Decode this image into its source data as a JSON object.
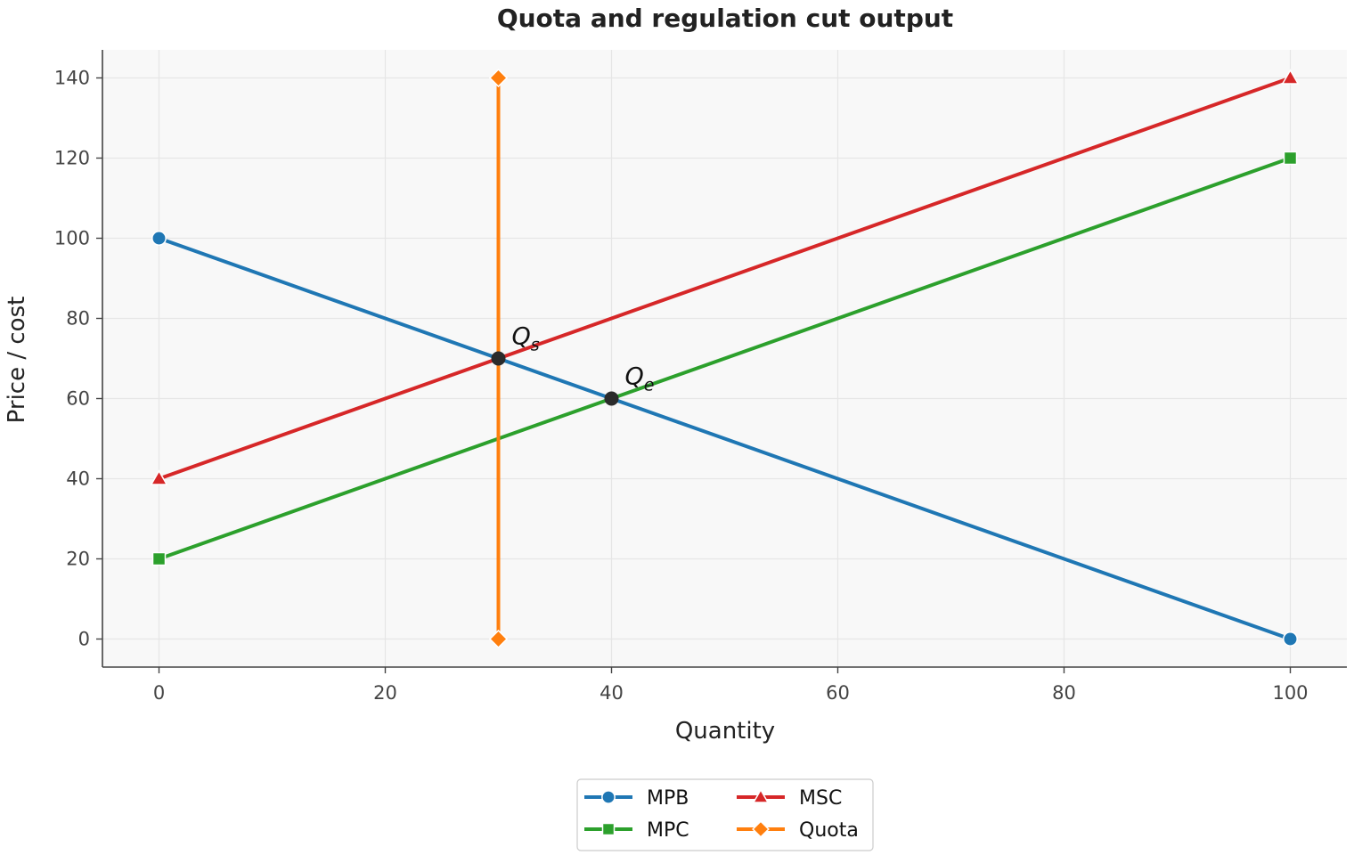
{
  "chart_data": {
    "type": "line",
    "title": "Quota and regulation cut output",
    "xlabel": "Quantity",
    "ylabel": "Price / cost",
    "xlim": [
      -5,
      105
    ],
    "ylim": [
      -7,
      147
    ],
    "xticks": [
      0,
      20,
      40,
      60,
      80,
      100
    ],
    "yticks": [
      0,
      20,
      40,
      60,
      80,
      100,
      120,
      140
    ],
    "grid": true,
    "legend_position": "bottom-center",
    "series": [
      {
        "name": "MPB",
        "color": "#1f77b4",
        "marker": "circle",
        "points": [
          [
            0,
            100
          ],
          [
            100,
            0
          ]
        ]
      },
      {
        "name": "MPC",
        "color": "#2ca02c",
        "marker": "square",
        "points": [
          [
            0,
            20
          ],
          [
            100,
            120
          ]
        ]
      },
      {
        "name": "MSC",
        "color": "#d62728",
        "marker": "triangle",
        "points": [
          [
            0,
            40
          ],
          [
            100,
            140
          ]
        ]
      },
      {
        "name": "Quota",
        "color": "#ff7f0e",
        "marker": "diamond",
        "points": [
          [
            30,
            0
          ],
          [
            30,
            140
          ]
        ]
      }
    ],
    "annotations": [
      {
        "base": "Q",
        "sub": "s",
        "x": 30,
        "y": 70
      },
      {
        "base": "Q",
        "sub": "e",
        "x": 40,
        "y": 60
      }
    ]
  }
}
